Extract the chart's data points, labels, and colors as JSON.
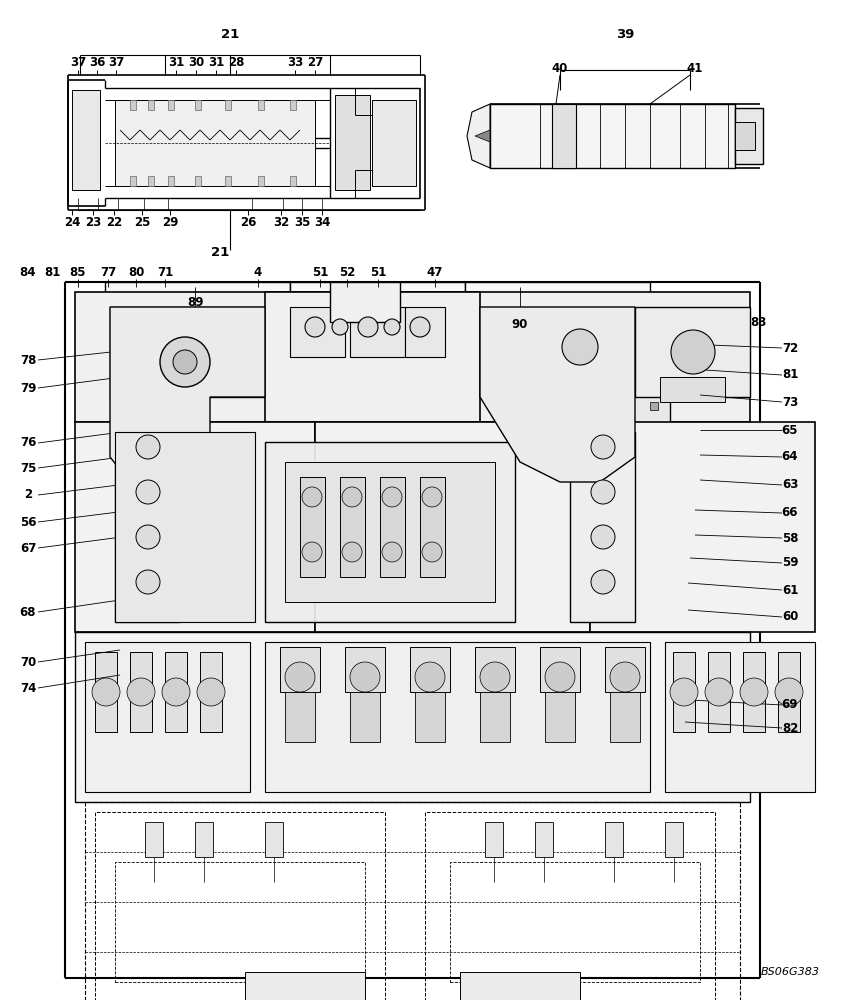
{
  "background_color": "#ffffff",
  "watermark": "BS06G383",
  "top_left_top_labels": [
    [
      "21",
      230,
      34
    ],
    [
      "37",
      78,
      63
    ],
    [
      "36",
      97,
      63
    ],
    [
      "37",
      116,
      63
    ],
    [
      "31",
      176,
      63
    ],
    [
      "30",
      196,
      63
    ],
    [
      "31",
      216,
      63
    ],
    [
      "28",
      236,
      63
    ],
    [
      "33",
      295,
      63
    ],
    [
      "27",
      315,
      63
    ]
  ],
  "top_left_bot_labels": [
    [
      "24",
      72,
      222
    ],
    [
      "23",
      93,
      222
    ],
    [
      "22",
      114,
      222
    ],
    [
      "25",
      142,
      222
    ],
    [
      "29",
      170,
      222
    ],
    [
      "26",
      248,
      222
    ],
    [
      "32",
      281,
      222
    ],
    [
      "35",
      302,
      222
    ],
    [
      "34",
      322,
      222
    ],
    [
      "21",
      220,
      252
    ]
  ],
  "top_right_labels": [
    [
      "39",
      625,
      34
    ],
    [
      "40",
      560,
      68
    ],
    [
      "41",
      695,
      68
    ]
  ],
  "main_top_labels": [
    [
      "84",
      28,
      272
    ],
    [
      "81",
      52,
      272
    ],
    [
      "85",
      78,
      272
    ],
    [
      "77",
      108,
      272
    ],
    [
      "80",
      136,
      272
    ],
    [
      "71",
      165,
      272
    ],
    [
      "4",
      258,
      272
    ],
    [
      "51",
      320,
      272
    ],
    [
      "52",
      347,
      272
    ],
    [
      "51",
      378,
      272
    ],
    [
      "47",
      435,
      272
    ],
    [
      "89",
      195,
      302
    ],
    [
      "90",
      520,
      325
    ]
  ],
  "main_right_labels": [
    [
      "83",
      758,
      322
    ],
    [
      "72",
      790,
      348
    ],
    [
      "81",
      790,
      375
    ],
    [
      "73",
      790,
      402
    ],
    [
      "65",
      790,
      430
    ],
    [
      "64",
      790,
      457
    ],
    [
      "63",
      790,
      485
    ],
    [
      "66",
      790,
      513
    ],
    [
      "58",
      790,
      538
    ],
    [
      "59",
      790,
      563
    ],
    [
      "61",
      790,
      590
    ],
    [
      "60",
      790,
      617
    ],
    [
      "69",
      790,
      705
    ],
    [
      "82",
      790,
      728
    ]
  ],
  "main_left_labels": [
    [
      "78",
      28,
      360
    ],
    [
      "79",
      28,
      388
    ],
    [
      "76",
      28,
      443
    ],
    [
      "75",
      28,
      468
    ],
    [
      "2",
      28,
      495
    ],
    [
      "56",
      28,
      522
    ],
    [
      "67",
      28,
      548
    ],
    [
      "68",
      28,
      612
    ],
    [
      "70",
      28,
      662
    ],
    [
      "74",
      28,
      688
    ]
  ]
}
